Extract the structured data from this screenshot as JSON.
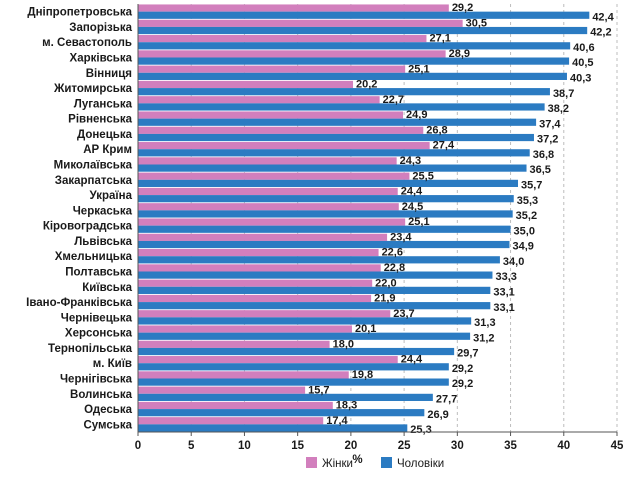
{
  "chart_data": {
    "type": "bar",
    "orientation": "horizontal",
    "categories": [
      "Дніпропетровська",
      "Запорізька",
      "м. Севастополь",
      "Харківська",
      "Вінниця",
      "Житомирська",
      "Луганська",
      "Рівненська",
      "Донецька",
      "АР Крим",
      "Миколаївська",
      "Закарпатська",
      "Україна",
      "Черкаська",
      "Кіровоградська",
      "Львівська",
      "Хмельницька",
      "Полтавська",
      "Київська",
      "Івано-Франківська",
      "Чернівецька",
      "Херсонська",
      "Тернопільська",
      "м. Київ",
      "Чернігівська",
      "Волинська",
      "Одеська",
      "Сумська"
    ],
    "series": [
      {
        "name": "Жінки",
        "color": "#d27fbd",
        "values": [
          29.2,
          30.5,
          27.1,
          28.9,
          25.1,
          20.2,
          22.7,
          24.9,
          26.8,
          27.4,
          24.3,
          25.5,
          24.4,
          24.5,
          25.1,
          23.4,
          22.6,
          22.8,
          22.0,
          21.9,
          23.7,
          20.1,
          18.0,
          24.4,
          19.8,
          15.7,
          18.3,
          17.4
        ],
        "value_labels": [
          "29,2",
          "30,5",
          "27,1",
          "28,9",
          "25,1",
          "20,2",
          "22,7",
          "24,9",
          "26,8",
          "27,4",
          "24,3",
          "25,5",
          "24,4",
          "24,5",
          "25,1",
          "23,4",
          "22,6",
          "22,8",
          "22,0",
          "21,9",
          "23,7",
          "20,1",
          "18,0",
          "24,4",
          "19,8",
          "15,7",
          "18,3",
          "17,4"
        ]
      },
      {
        "name": "Чоловіки",
        "color": "#2b7bc2",
        "values": [
          42.4,
          42.2,
          40.6,
          40.5,
          40.3,
          38.7,
          38.2,
          37.4,
          37.2,
          36.8,
          36.5,
          35.7,
          35.3,
          35.2,
          35.0,
          34.9,
          34.0,
          33.3,
          33.1,
          33.1,
          31.3,
          31.2,
          29.7,
          29.2,
          29.2,
          27.7,
          26.9,
          25.3
        ],
        "value_labels": [
          "42,4",
          "42,2",
          "40,6",
          "40,5",
          "40,3",
          "38,7",
          "38,2",
          "37,4",
          "37,2",
          "36,8",
          "36,5",
          "35,7",
          "35,3",
          "35,2",
          "35,0",
          "34,9",
          "34,0",
          "33,3",
          "33,1",
          "33,1",
          "31,3",
          "31,2",
          "29,7",
          "29,2",
          "29,2",
          "27,7",
          "26,9",
          "25,3"
        ]
      }
    ],
    "xlim": [
      0,
      45
    ],
    "xticks": [
      0,
      5,
      10,
      15,
      20,
      25,
      30,
      35,
      40,
      45
    ],
    "xtick_labels": [
      "0",
      "5",
      "10",
      "15",
      "20",
      "25",
      "30",
      "35",
      "40",
      "45"
    ],
    "xlabel": "%",
    "grid": "vertical dashed",
    "legend_position": "bottom"
  }
}
